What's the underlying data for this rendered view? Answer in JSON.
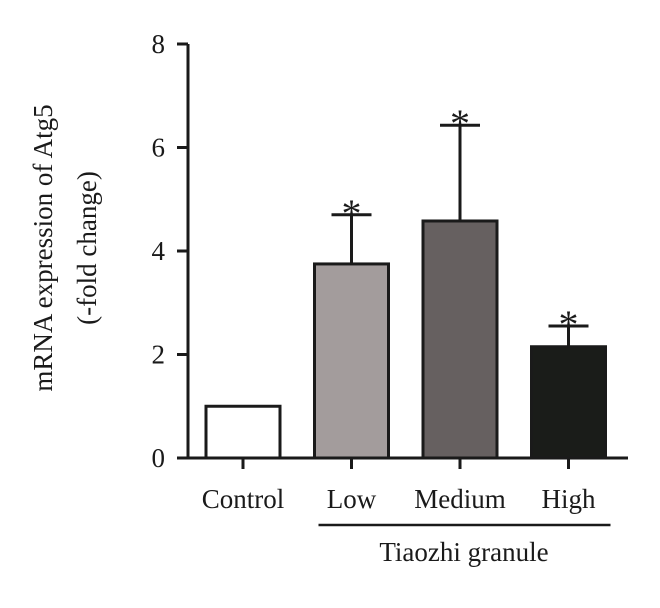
{
  "chart_data": {
    "type": "bar",
    "categories": [
      "Control",
      "Low",
      "Medium",
      "High"
    ],
    "values": [
      1.0,
      3.75,
      4.58,
      2.15
    ],
    "errors": [
      0.0,
      0.95,
      1.85,
      0.4
    ],
    "significance": [
      "",
      "*",
      "*",
      "*"
    ],
    "bar_colors": [
      "#ffffff",
      "#a39c9c",
      "#666060",
      "#1a1c19"
    ],
    "ylabel_lines": [
      "mRNA expression of Atg5",
      "(-fold change)"
    ],
    "yticks": [
      0,
      2,
      4,
      6,
      8
    ],
    "ylim": [
      0,
      8
    ],
    "group_label": "Tiaozhi granule",
    "group_members": [
      "Low",
      "Medium",
      "High"
    ],
    "grid": false
  }
}
